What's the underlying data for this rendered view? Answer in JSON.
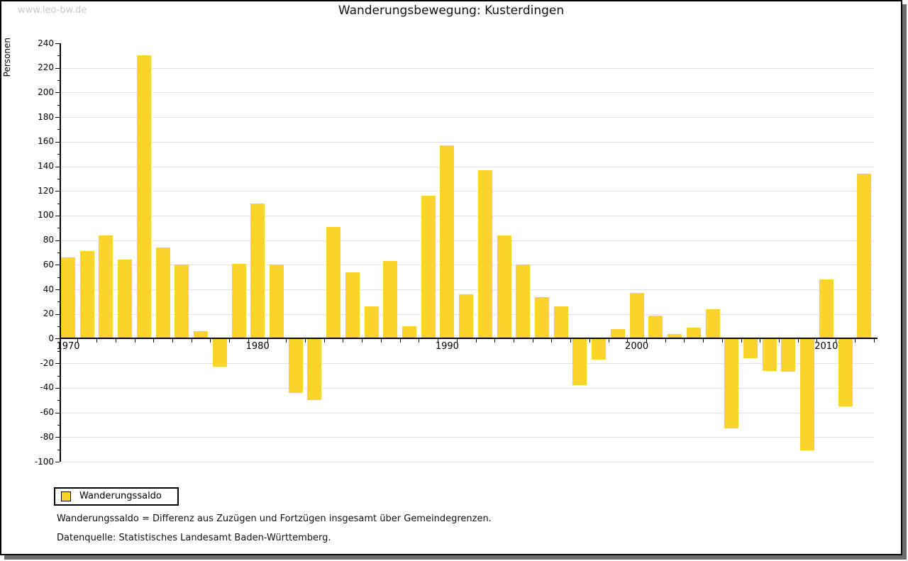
{
  "watermark": "www.leo-bw.de",
  "chart_data": {
    "type": "bar",
    "title": "Wanderungsbewegung: Kusterdingen",
    "xlabel": "",
    "ylabel": "Personen",
    "ylim": [
      -100,
      240
    ],
    "ytick_step": 20,
    "yminor_step": 10,
    "grid": true,
    "legend": [
      "Wanderungssaldo"
    ],
    "legend_position": "bottom-left",
    "xtick_labeled_years": [
      1970,
      1980,
      1990,
      2000,
      2010
    ],
    "categories": [
      1970,
      1971,
      1972,
      1973,
      1974,
      1975,
      1976,
      1977,
      1978,
      1979,
      1980,
      1981,
      1982,
      1983,
      1984,
      1985,
      1986,
      1987,
      1988,
      1989,
      1990,
      1991,
      1992,
      1993,
      1994,
      1995,
      1996,
      1997,
      1998,
      1999,
      2000,
      2001,
      2002,
      2003,
      2004,
      2005,
      2006,
      2007,
      2008,
      2009,
      2010,
      2011,
      2012
    ],
    "values": [
      66,
      71,
      84,
      64,
      230,
      74,
      60,
      6,
      -23,
      61,
      110,
      60,
      -44,
      -50,
      91,
      54,
      26,
      63,
      10,
      116,
      157,
      36,
      137,
      84,
      60,
      34,
      26,
      -38,
      -17,
      8,
      37,
      19,
      4,
      9,
      24,
      -73,
      -16,
      -26,
      -27,
      -91,
      48,
      -55,
      134
    ],
    "colors": {
      "bar": "#fcd32c",
      "gridline": "#e0e0e0",
      "axis": "#000000",
      "watermark": "#c8c8c8",
      "frame_shadow": "#6e6e6e"
    }
  },
  "footnotes": [
    "Wanderungssaldo = Differenz aus Zuzügen und Fortzügen insgesamt über Gemeindegrenzen.",
    "Datenquelle: Statistisches Landesamt Baden-Württemberg."
  ]
}
